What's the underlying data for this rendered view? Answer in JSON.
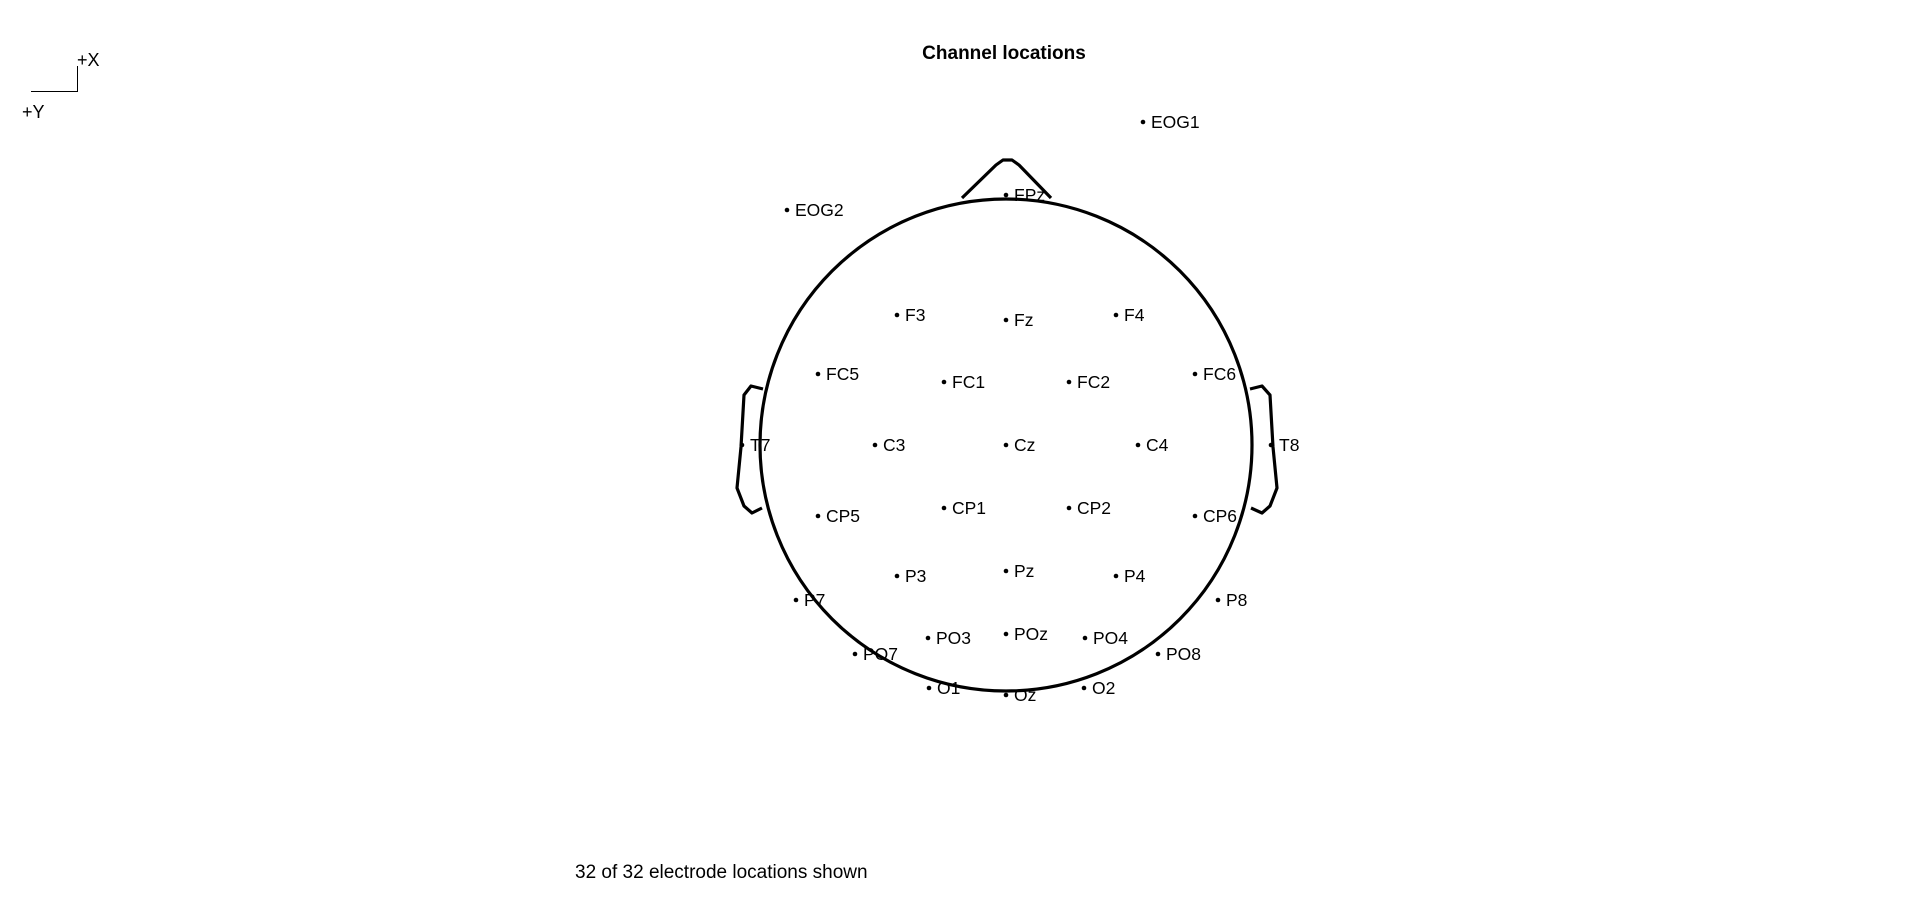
{
  "title": "Channel locations",
  "axis_legend": {
    "x_label": "+X",
    "y_label": "+Y"
  },
  "status": "32 of 32 electrode locations shown",
  "channels": [
    {
      "label": "EOG1"
    },
    {
      "label": "EOG2"
    },
    {
      "label": "FPz"
    },
    {
      "label": "F3"
    },
    {
      "label": "Fz"
    },
    {
      "label": "F4"
    },
    {
      "label": "FC5"
    },
    {
      "label": "FC1"
    },
    {
      "label": "FC2"
    },
    {
      "label": "FC6"
    },
    {
      "label": "T7"
    },
    {
      "label": "C3"
    },
    {
      "label": "Cz"
    },
    {
      "label": "C4"
    },
    {
      "label": "T8"
    },
    {
      "label": "CP5"
    },
    {
      "label": "CP1"
    },
    {
      "label": "CP2"
    },
    {
      "label": "CP6"
    },
    {
      "label": "P3"
    },
    {
      "label": "Pz"
    },
    {
      "label": "P4"
    },
    {
      "label": "P7"
    },
    {
      "label": "P8"
    },
    {
      "label": "PO3"
    },
    {
      "label": "POz"
    },
    {
      "label": "PO4"
    },
    {
      "label": "PO7"
    },
    {
      "label": "PO8"
    },
    {
      "label": "O1"
    },
    {
      "label": "Oz"
    },
    {
      "label": "O2"
    }
  ]
}
